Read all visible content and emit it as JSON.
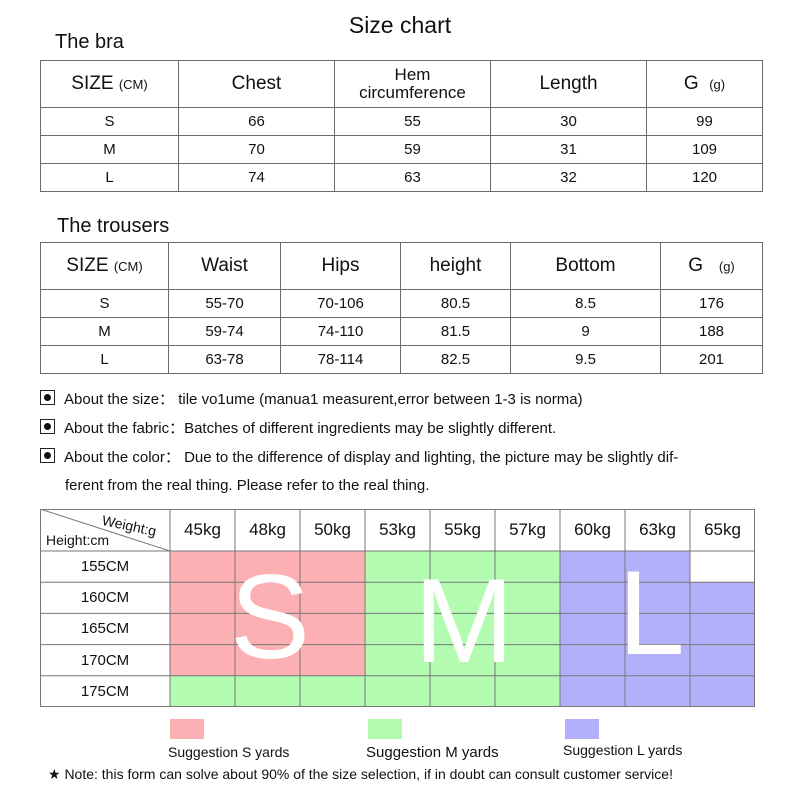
{
  "title": "Size chart",
  "bra": {
    "section": "The bra",
    "headers": [
      "SIZE",
      "(CM)",
      "Chest",
      "Hem",
      "circumference",
      "Length",
      "G",
      "(g)"
    ],
    "rows": [
      [
        "S",
        "66",
        "55",
        "30",
        "99"
      ],
      [
        "M",
        "70",
        "59",
        "31",
        "109"
      ],
      [
        "L",
        "74",
        "63",
        "32",
        "120"
      ]
    ]
  },
  "trousers": {
    "section": "The trousers",
    "headers": [
      "SIZE",
      "(CM)",
      "Waist",
      "Hips",
      "height",
      "Bottom",
      "G",
      "(g)"
    ],
    "rows": [
      [
        "S",
        "55-70",
        "70-106",
        "80.5",
        "8.5",
        "176"
      ],
      [
        "M",
        "59-74",
        "74-110",
        "81.5",
        "9",
        "188"
      ],
      [
        "L",
        "63-78",
        "78-114",
        "82.5",
        "9.5",
        "201"
      ]
    ]
  },
  "notes": [
    "About the size： tile vo1ume (manua1 measurent,error between 1-3 is norma)",
    "About the fabric：Batches of different ingredients may be slightly different.",
    "About the color： Due to the difference of display and lighting, the picture may be slightly dif-",
    "ferent from the real thing. Please refer to the real thing."
  ],
  "grid": {
    "weight_label": "Weight:g",
    "height_label": "Height:cm",
    "weights": [
      "45kg",
      "48kg",
      "50kg",
      "53kg",
      "55kg",
      "57kg",
      "60kg",
      "63kg",
      "65kg"
    ],
    "heights": [
      "155CM",
      "160CM",
      "165CM",
      "170CM",
      "175CM"
    ],
    "size_letters": [
      "S",
      "M",
      "L"
    ],
    "cells": [
      [
        "S",
        "S",
        "S",
        "M",
        "M",
        "M",
        "L",
        "L",
        ""
      ],
      [
        "S",
        "S",
        "S",
        "M",
        "M",
        "M",
        "L",
        "L",
        "L"
      ],
      [
        "S",
        "S",
        "S",
        "M",
        "M",
        "M",
        "L",
        "L",
        "L"
      ],
      [
        "S",
        "S",
        "S",
        "M",
        "M",
        "M",
        "L",
        "L",
        "L"
      ],
      [
        "M",
        "M",
        "M",
        "M",
        "M",
        "M",
        "L",
        "L",
        "L"
      ]
    ],
    "colors": {
      "S": "#fdb0b3",
      "M": "#b2fbb0",
      "L": "#b3b0fb"
    }
  },
  "legend": [
    "Suggestion S yards",
    "Suggestion M yards",
    "Suggestion L yards"
  ],
  "footnote": "★ Note: this form can solve about 90% of the size selection, if in doubt can consult customer service!"
}
